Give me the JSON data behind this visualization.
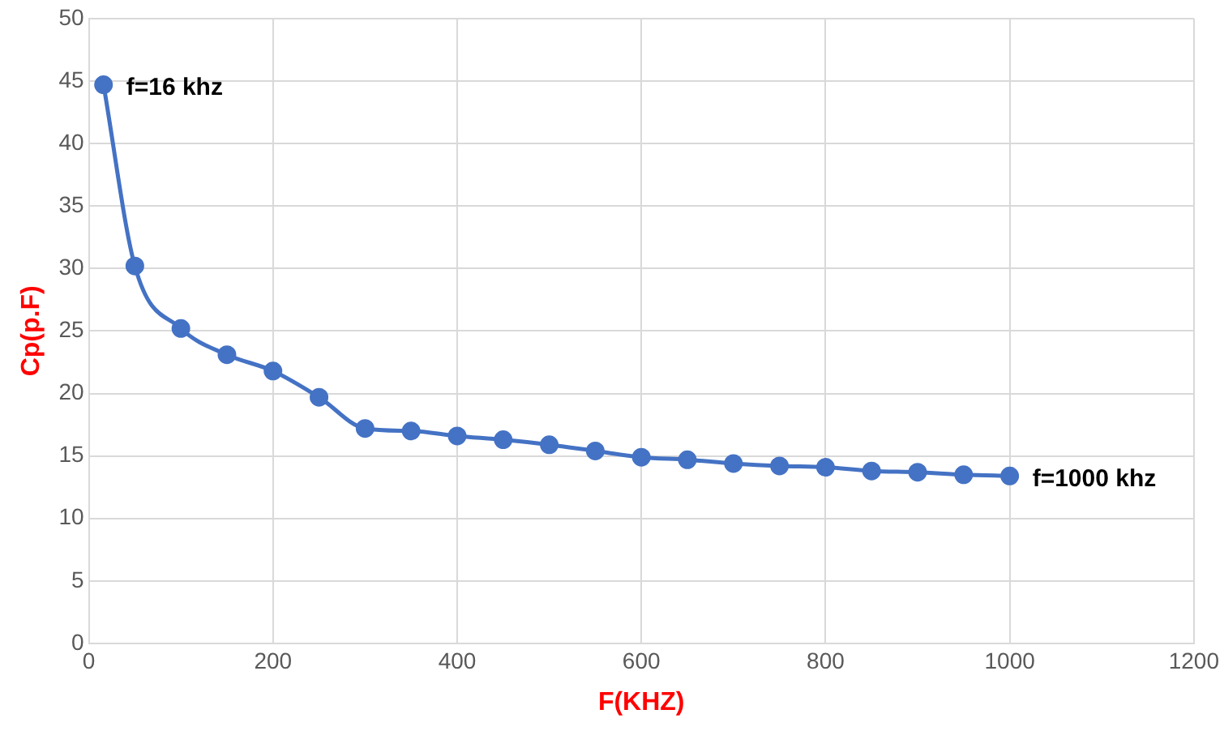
{
  "chart_data": {
    "type": "line",
    "xlabel": "F(KHZ)",
    "ylabel": "Cp(p.F)",
    "x": [
      16,
      50,
      100,
      150,
      200,
      250,
      300,
      350,
      400,
      450,
      500,
      550,
      600,
      650,
      700,
      750,
      800,
      850,
      900,
      950,
      1000
    ],
    "series": [
      {
        "color": "#4472c4",
        "values": [
          44.7,
          30.2,
          25.2,
          23.1,
          21.8,
          19.7,
          17.2,
          17.0,
          16.6,
          16.3,
          15.9,
          15.4,
          14.9,
          14.7,
          14.4,
          14.2,
          14.1,
          13.8,
          13.7,
          13.5,
          13.4
        ]
      }
    ],
    "xlim": [
      0,
      1200
    ],
    "xticks": [
      0,
      200,
      400,
      600,
      800,
      1000,
      1200
    ],
    "ylim": [
      0,
      50
    ],
    "yticks": [
      0,
      5,
      10,
      15,
      20,
      25,
      30,
      35,
      40,
      45,
      50
    ],
    "grid": true,
    "legend": false,
    "marker": "circle",
    "line_style": "solid",
    "annotations": [
      {
        "text": "f=16 khz",
        "x": 16,
        "y": 44.7
      },
      {
        "text": "f=1000 khz",
        "x": 1000,
        "y": 13.4
      }
    ]
  }
}
